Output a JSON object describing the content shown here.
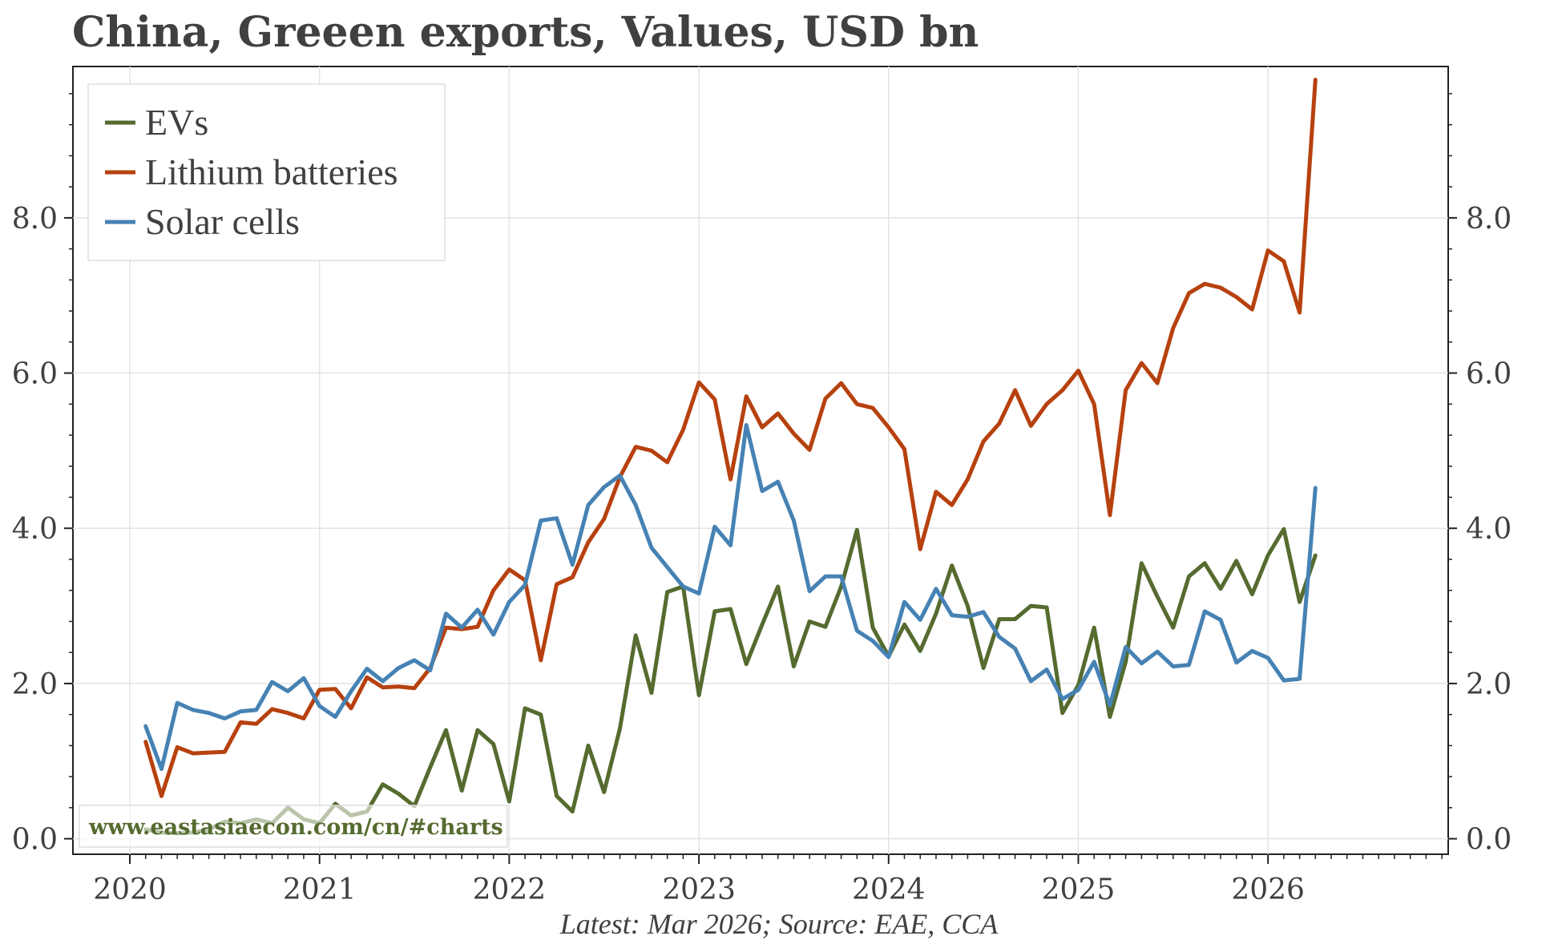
{
  "chart_data": {
    "type": "line",
    "title": "China, Greeen exports, Values, USD bn",
    "footer": "Latest: Mar 2026; Source: EAE, CCA",
    "watermark": "www.eastasiaecon.com/cn/#charts",
    "xlabel": "",
    "ylabel": "",
    "x_unit": "years",
    "xlim": [
      2019.7,
      2026.95
    ],
    "ylim": [
      -0.2,
      9.95
    ],
    "yticks": [
      0,
      2,
      4,
      6,
      8
    ],
    "ytick_labels": [
      "0.0",
      "2.0",
      "4.0",
      "6.0",
      "8.0"
    ],
    "xticks": [
      2020,
      2021,
      2022,
      2023,
      2024,
      2025,
      2026
    ],
    "xtick_labels": [
      "2020",
      "2021",
      "2022",
      "2023",
      "2024",
      "2025",
      "2026"
    ],
    "grid": true,
    "legend_position": "top-left",
    "start_month": "2020-02",
    "series": [
      {
        "name": "EVs",
        "color": "#556b2f",
        "values": [
          0.12,
          0.08,
          0.07,
          0.08,
          0.12,
          0.22,
          0.2,
          0.25,
          0.2,
          0.4,
          0.25,
          0.2,
          0.45,
          0.3,
          0.35,
          0.7,
          0.58,
          0.42,
          0.92,
          1.4,
          0.62,
          1.4,
          1.22,
          0.48,
          1.68,
          1.6,
          0.55,
          0.35,
          1.2,
          0.6,
          1.42,
          2.62,
          1.88,
          3.18,
          3.25,
          1.85,
          2.93,
          2.96,
          2.25,
          2.76,
          3.25,
          2.22,
          2.8,
          2.73,
          3.25,
          3.98,
          2.72,
          2.35,
          2.76,
          2.42,
          2.9,
          3.52,
          3.0,
          2.2,
          2.83,
          2.83,
          3.0,
          2.98,
          1.62,
          1.98,
          2.72,
          1.57,
          2.28,
          3.55,
          3.12,
          2.72,
          3.38,
          3.55,
          3.22,
          3.58,
          3.15,
          3.65,
          3.99,
          3.05,
          3.65
        ]
      },
      {
        "name": "Lithium batteries",
        "color": "#b7410e",
        "values": [
          1.25,
          0.55,
          1.18,
          1.1,
          1.11,
          1.12,
          1.5,
          1.48,
          1.67,
          1.62,
          1.55,
          1.92,
          1.93,
          1.68,
          2.08,
          1.95,
          1.96,
          1.94,
          2.2,
          2.72,
          2.7,
          2.73,
          3.2,
          3.47,
          3.33,
          2.3,
          3.28,
          3.37,
          3.82,
          4.12,
          4.66,
          5.05,
          5.0,
          4.85,
          5.27,
          5.88,
          5.66,
          4.63,
          5.7,
          5.3,
          5.48,
          5.22,
          5.01,
          5.67,
          5.87,
          5.6,
          5.55,
          5.3,
          5.02,
          3.73,
          4.47,
          4.3,
          4.63,
          5.12,
          5.35,
          5.78,
          5.32,
          5.6,
          5.78,
          6.03,
          5.6,
          4.17,
          5.78,
          6.13,
          5.87,
          6.58,
          7.03,
          7.15,
          7.1,
          6.98,
          6.82,
          7.58,
          7.44,
          6.78,
          9.78
        ]
      },
      {
        "name": "Solar cells",
        "color": "#4682b4",
        "values": [
          1.45,
          0.9,
          1.75,
          1.66,
          1.62,
          1.55,
          1.64,
          1.66,
          2.02,
          1.9,
          2.07,
          1.71,
          1.57,
          1.9,
          2.19,
          2.03,
          2.2,
          2.3,
          2.17,
          2.9,
          2.72,
          2.95,
          2.63,
          3.05,
          3.27,
          4.1,
          4.13,
          3.53,
          4.3,
          4.53,
          4.68,
          4.3,
          3.75,
          3.5,
          3.25,
          3.16,
          4.02,
          3.78,
          5.33,
          4.48,
          4.6,
          4.1,
          3.19,
          3.38,
          3.38,
          2.68,
          2.55,
          2.34,
          3.05,
          2.82,
          3.22,
          2.88,
          2.86,
          2.92,
          2.6,
          2.45,
          2.03,
          2.18,
          1.8,
          1.92,
          2.28,
          1.72,
          2.47,
          2.26,
          2.41,
          2.22,
          2.24,
          2.93,
          2.82,
          2.27,
          2.42,
          2.33,
          2.04,
          2.06,
          4.52
        ]
      }
    ]
  }
}
